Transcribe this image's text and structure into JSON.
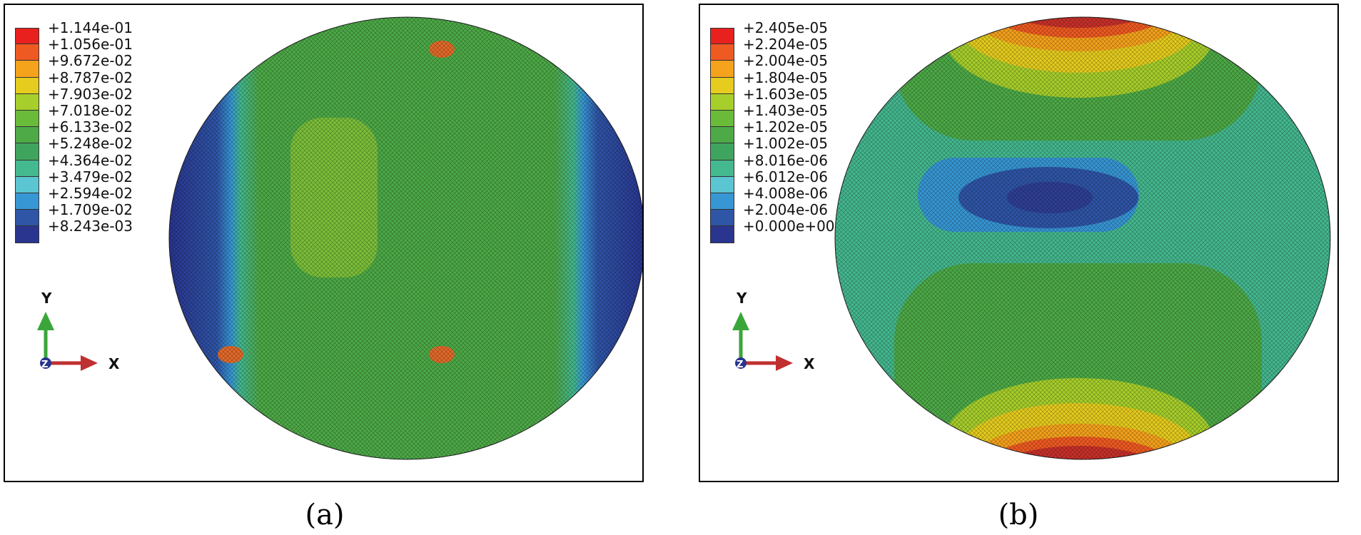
{
  "panels": [
    {
      "caption": "(a)",
      "legend": {
        "labels": [
          "+1.144e-01",
          "+1.056e-01",
          "+9.672e-02",
          "+8.787e-02",
          "+7.903e-02",
          "+7.018e-02",
          "+6.133e-02",
          "+5.248e-02",
          "+4.364e-02",
          "+3.479e-02",
          "+2.594e-02",
          "+1.709e-02",
          "+8.243e-03"
        ],
        "colors": [
          "#e8201e",
          "#ef5a22",
          "#f5a21c",
          "#e5cc1e",
          "#a7cf2b",
          "#6bbb3a",
          "#4daa47",
          "#3fa45e",
          "#44b88f",
          "#5bc5d2",
          "#3796d4",
          "#2f55a7",
          "#2a3590"
        ]
      },
      "axes": {
        "y": "Y",
        "x": "X",
        "z": "Z"
      }
    },
    {
      "caption": "(b)",
      "legend": {
        "labels": [
          "+2.405e-05",
          "+2.204e-05",
          "+2.004e-05",
          "+1.804e-05",
          "+1.603e-05",
          "+1.403e-05",
          "+1.202e-05",
          "+1.002e-05",
          "+8.016e-06",
          "+6.012e-06",
          "+4.008e-06",
          "+2.004e-06",
          "+0.000e+00"
        ],
        "colors": [
          "#e8201e",
          "#ef5a22",
          "#f5a21c",
          "#e5cc1e",
          "#a7cf2b",
          "#6bbb3a",
          "#4daa47",
          "#3fa45e",
          "#44b88f",
          "#5bc5d2",
          "#3796d4",
          "#2f55a7",
          "#2a3590"
        ]
      },
      "axes": {
        "y": "Y",
        "x": "X",
        "z": "Z"
      }
    }
  ]
}
